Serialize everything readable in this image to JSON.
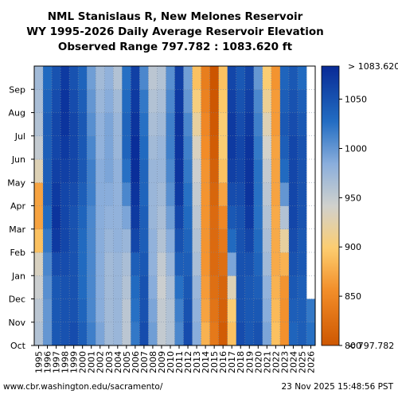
{
  "chart_data": {
    "type": "heatmap",
    "title_lines": [
      "NML Stanislaus R, New Melones Reservoir",
      "WY 1995-2026 Daily Average Reservoir Elevation",
      "Observed Range 797.782 : 1083.620 ft"
    ],
    "x_categories": [
      "1995",
      "1996",
      "1997",
      "1998",
      "1999",
      "2000",
      "2001",
      "2002",
      "2003",
      "2004",
      "2005",
      "2006",
      "2007",
      "2008",
      "2009",
      "2010",
      "2011",
      "2012",
      "2013",
      "2014",
      "2015",
      "2016",
      "2017",
      "2018",
      "2019",
      "2020",
      "2021",
      "2022",
      "2023",
      "2024",
      "2025",
      "2026"
    ],
    "y_categories": [
      "Oct",
      "Nov",
      "Dec",
      "Jan",
      "Feb",
      "Mar",
      "Apr",
      "May",
      "Jun",
      "Jul",
      "Aug",
      "Sep"
    ],
    "values_ft": [
      [
        960,
        955,
        945,
        935,
        890,
        870,
        870,
        930,
        950,
        960,
        965,
        970
      ],
      [
        1000,
        1000,
        1005,
        1010,
        1020,
        1030,
        1040,
        1040,
        1040,
        1040,
        1035,
        1030
      ],
      [
        1045,
        1045,
        1045,
        1055,
        1070,
        1075,
        1070,
        1065,
        1060,
        1060,
        1055,
        1050
      ],
      [
        1050,
        1050,
        1050,
        1055,
        1060,
        1060,
        1060,
        1065,
        1070,
        1075,
        1075,
        1070
      ],
      [
        1055,
        1050,
        1050,
        1050,
        1050,
        1050,
        1055,
        1060,
        1060,
        1060,
        1055,
        1050
      ],
      [
        1040,
        1035,
        1030,
        1030,
        1030,
        1035,
        1040,
        1045,
        1045,
        1045,
        1040,
        1035
      ],
      [
        1015,
        1010,
        1010,
        1010,
        1010,
        1010,
        1015,
        1015,
        1010,
        1005,
        1000,
        995
      ],
      [
        990,
        985,
        985,
        985,
        985,
        985,
        985,
        985,
        980,
        980,
        975,
        970
      ],
      [
        970,
        970,
        970,
        970,
        975,
        980,
        985,
        990,
        990,
        990,
        985,
        980
      ],
      [
        975,
        975,
        975,
        975,
        980,
        980,
        980,
        980,
        975,
        975,
        970,
        960
      ],
      [
        955,
        955,
        960,
        965,
        975,
        990,
        1010,
        1025,
        1035,
        1035,
        1030,
        1025
      ],
      [
        1020,
        1025,
        1030,
        1040,
        1060,
        1070,
        1075,
        1080,
        1080,
        1075,
        1070,
        1065
      ],
      [
        1055,
        1050,
        1050,
        1045,
        1040,
        1040,
        1035,
        1035,
        1030,
        1025,
        1020,
        1010
      ],
      [
        995,
        990,
        985,
        980,
        980,
        975,
        975,
        975,
        970,
        965,
        960,
        955
      ],
      [
        950,
        950,
        945,
        950,
        960,
        965,
        970,
        975,
        975,
        970,
        965,
        960
      ],
      [
        960,
        960,
        965,
        975,
        985,
        995,
        1005,
        1010,
        1015,
        1015,
        1010,
        1005
      ],
      [
        1010,
        1015,
        1025,
        1040,
        1050,
        1060,
        1070,
        1075,
        1075,
        1075,
        1070,
        1065
      ],
      [
        1055,
        1050,
        1045,
        1040,
        1035,
        1030,
        1025,
        1020,
        1015,
        1010,
        1000,
        995
      ],
      [
        985,
        980,
        975,
        965,
        960,
        955,
        950,
        945,
        935,
        920,
        905,
        890
      ],
      [
        880,
        870,
        865,
        860,
        860,
        860,
        860,
        860,
        855,
        850,
        845,
        840
      ],
      [
        835,
        830,
        825,
        820,
        820,
        820,
        815,
        810,
        805,
        802,
        800,
        798
      ],
      [
        805,
        810,
        815,
        825,
        835,
        850,
        870,
        890,
        900,
        900,
        895,
        890
      ],
      [
        890,
        900,
        930,
        990,
        1030,
        1045,
        1055,
        1065,
        1070,
        1070,
        1065,
        1060
      ],
      [
        1055,
        1050,
        1050,
        1050,
        1050,
        1050,
        1055,
        1060,
        1060,
        1055,
        1050,
        1045
      ],
      [
        1045,
        1045,
        1045,
        1050,
        1060,
        1070,
        1075,
        1075,
        1075,
        1070,
        1065,
        1060
      ],
      [
        1050,
        1045,
        1040,
        1035,
        1030,
        1025,
        1025,
        1025,
        1020,
        1015,
        1010,
        1000
      ],
      [
        990,
        985,
        980,
        970,
        965,
        960,
        955,
        950,
        940,
        930,
        915,
        900
      ],
      [
        890,
        885,
        880,
        875,
        875,
        875,
        870,
        870,
        870,
        865,
        865,
        860
      ],
      [
        858,
        858,
        860,
        880,
        920,
        960,
        1000,
        1030,
        1040,
        1045,
        1040,
        1035
      ],
      [
        1035,
        1040,
        1045,
        1050,
        1055,
        1060,
        1060,
        1060,
        1060,
        1055,
        1050,
        1045
      ],
      [
        1040,
        1040,
        1040,
        1045,
        1045,
        1050,
        1050,
        1050,
        1050,
        1045,
        1040,
        1030
      ],
      [
        1025,
        1020,
        null,
        null,
        null,
        null,
        null,
        null,
        null,
        null,
        null,
        null
      ]
    ],
    "value_min": 797.782,
    "value_max": 1083.62,
    "colorbar_range": [
      800,
      1083.62
    ],
    "colorbar_ticks": [
      "800",
      "850",
      "900",
      "950",
      "1000",
      "1050"
    ],
    "colorbar_top_label": "> 1083.620",
    "colorbar_bottom_label": "< 797.782",
    "grid": true,
    "footer_left": "www.cbr.washington.edu/sacramento/",
    "footer_right": "23 Nov 2025 15:48:56 PST"
  }
}
